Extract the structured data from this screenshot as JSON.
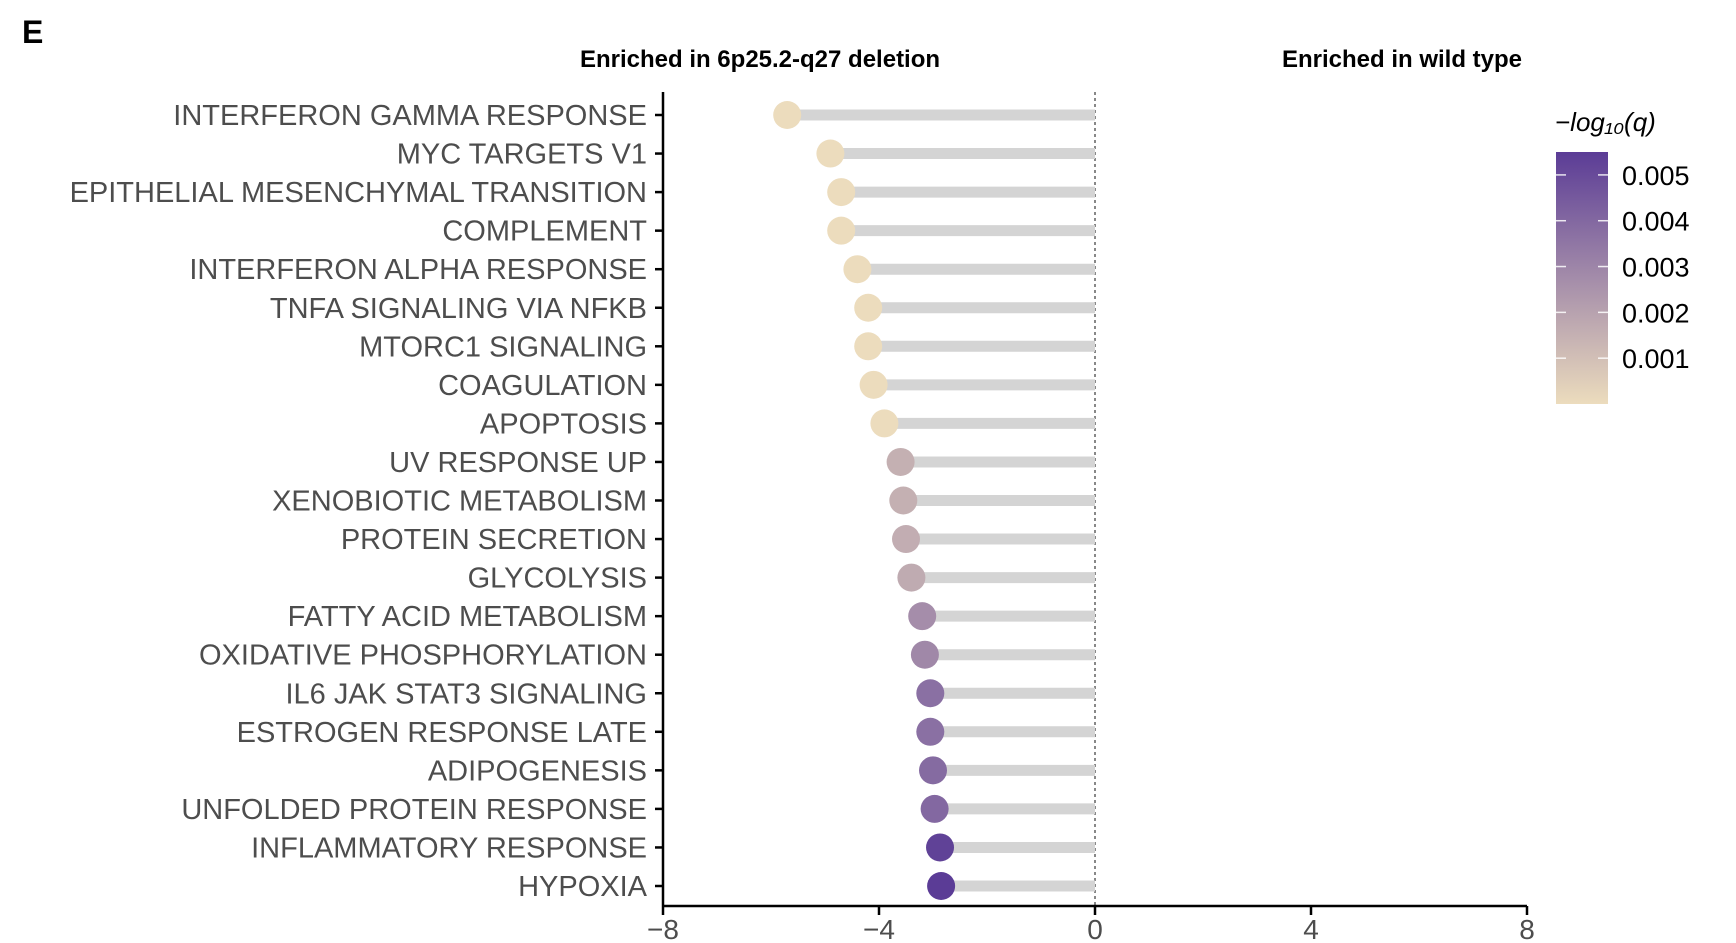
{
  "panel_letter": "E",
  "chart_data": {
    "type": "lollipop",
    "headers": {
      "left": "Enriched in 6p25.2-q27 deletion",
      "right": "Enriched in wild type"
    },
    "xlim": [
      -8,
      8
    ],
    "xticks": [
      -8,
      -4,
      0,
      4,
      8
    ],
    "xtick_labels": [
      "−8",
      "−4",
      "0",
      "4",
      "8"
    ],
    "reference_line": 0,
    "categories": [
      "INTERFERON GAMMA RESPONSE",
      "MYC TARGETS V1",
      "EPITHELIAL MESENCHYMAL TRANSITION",
      "COMPLEMENT",
      "INTERFERON ALPHA RESPONSE",
      "TNFA SIGNALING VIA NFKB",
      "MTORC1 SIGNALING",
      "COAGULATION",
      "APOPTOSIS",
      "UV RESPONSE UP",
      "XENOBIOTIC METABOLISM",
      "PROTEIN SECRETION",
      "GLYCOLYSIS",
      "FATTY ACID METABOLISM",
      "OXIDATIVE PHOSPHORYLATION",
      "IL6 JAK STAT3 SIGNALING",
      "ESTROGEN RESPONSE LATE",
      "ADIPOGENESIS",
      "UNFOLDED PROTEIN RESPONSE",
      "INFLAMMATORY RESPONSE",
      "HYPOXIA"
    ],
    "values": [
      -5.7,
      -4.9,
      -4.7,
      -4.7,
      -4.4,
      -4.2,
      -4.2,
      -4.1,
      -3.9,
      -3.6,
      -3.55,
      -3.5,
      -3.4,
      -3.2,
      -3.15,
      -3.05,
      -3.05,
      -3.0,
      -2.97,
      -2.87,
      -2.85
    ],
    "color_values": [
      0.0,
      0.0,
      0.0,
      0.0,
      0.0,
      0.0,
      0.0,
      0.0,
      0.0,
      0.0015,
      0.0015,
      0.0016,
      0.0017,
      0.0027,
      0.0029,
      0.0037,
      0.0037,
      0.0039,
      0.004,
      0.0053,
      0.0055
    ],
    "colorbar": {
      "title": "−log₁₀(q)",
      "range": [
        0.0,
        0.0055
      ],
      "ticks": [
        0.001,
        0.002,
        0.003,
        0.004,
        0.005
      ],
      "tick_labels": [
        "0.001",
        "0.002",
        "0.003",
        "0.004",
        "0.005"
      ],
      "low_color": "#ecdcbd",
      "high_color": "#5b3c96"
    },
    "stem_color": "#d4d4d4",
    "reference_line_color": "#888888"
  }
}
